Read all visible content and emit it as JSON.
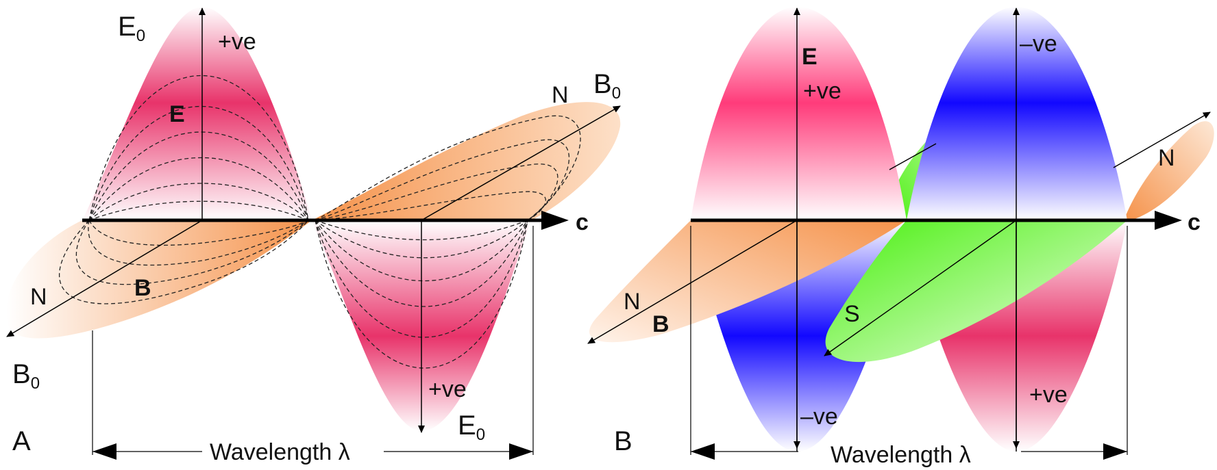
{
  "panel_a": {
    "letter": "A",
    "e0_top": "E",
    "e0_top_sub": "0",
    "e0_bottom": "E",
    "e0_bottom_sub": "0",
    "b0_right": "B",
    "b0_right_sub": "0",
    "b0_left": "B",
    "b0_left_sub": "0",
    "pos_top": "+ve",
    "pos_bottom": "+ve",
    "e_label": "E",
    "b_label": "B",
    "n_right": "N",
    "n_left": "N",
    "c_label": "c",
    "wavelength": "Wavelength λ"
  },
  "panel_b": {
    "letter": "B",
    "e_label": "E",
    "b_label": "B",
    "pos_top": "+ve",
    "neg_top": "–ve",
    "neg_bottom": "–ve",
    "pos_bottom": "+ve",
    "n_right": "N",
    "n_left": "N",
    "s_label": "S",
    "c_label": "c",
    "wavelength": "Wavelength λ"
  },
  "colors": {
    "electric_positive": "#e8336a",
    "electric_negative": "#1a10ff",
    "magnetic_north": "#f08a3c",
    "magnetic_south": "#55f020",
    "axis": "#000000"
  }
}
